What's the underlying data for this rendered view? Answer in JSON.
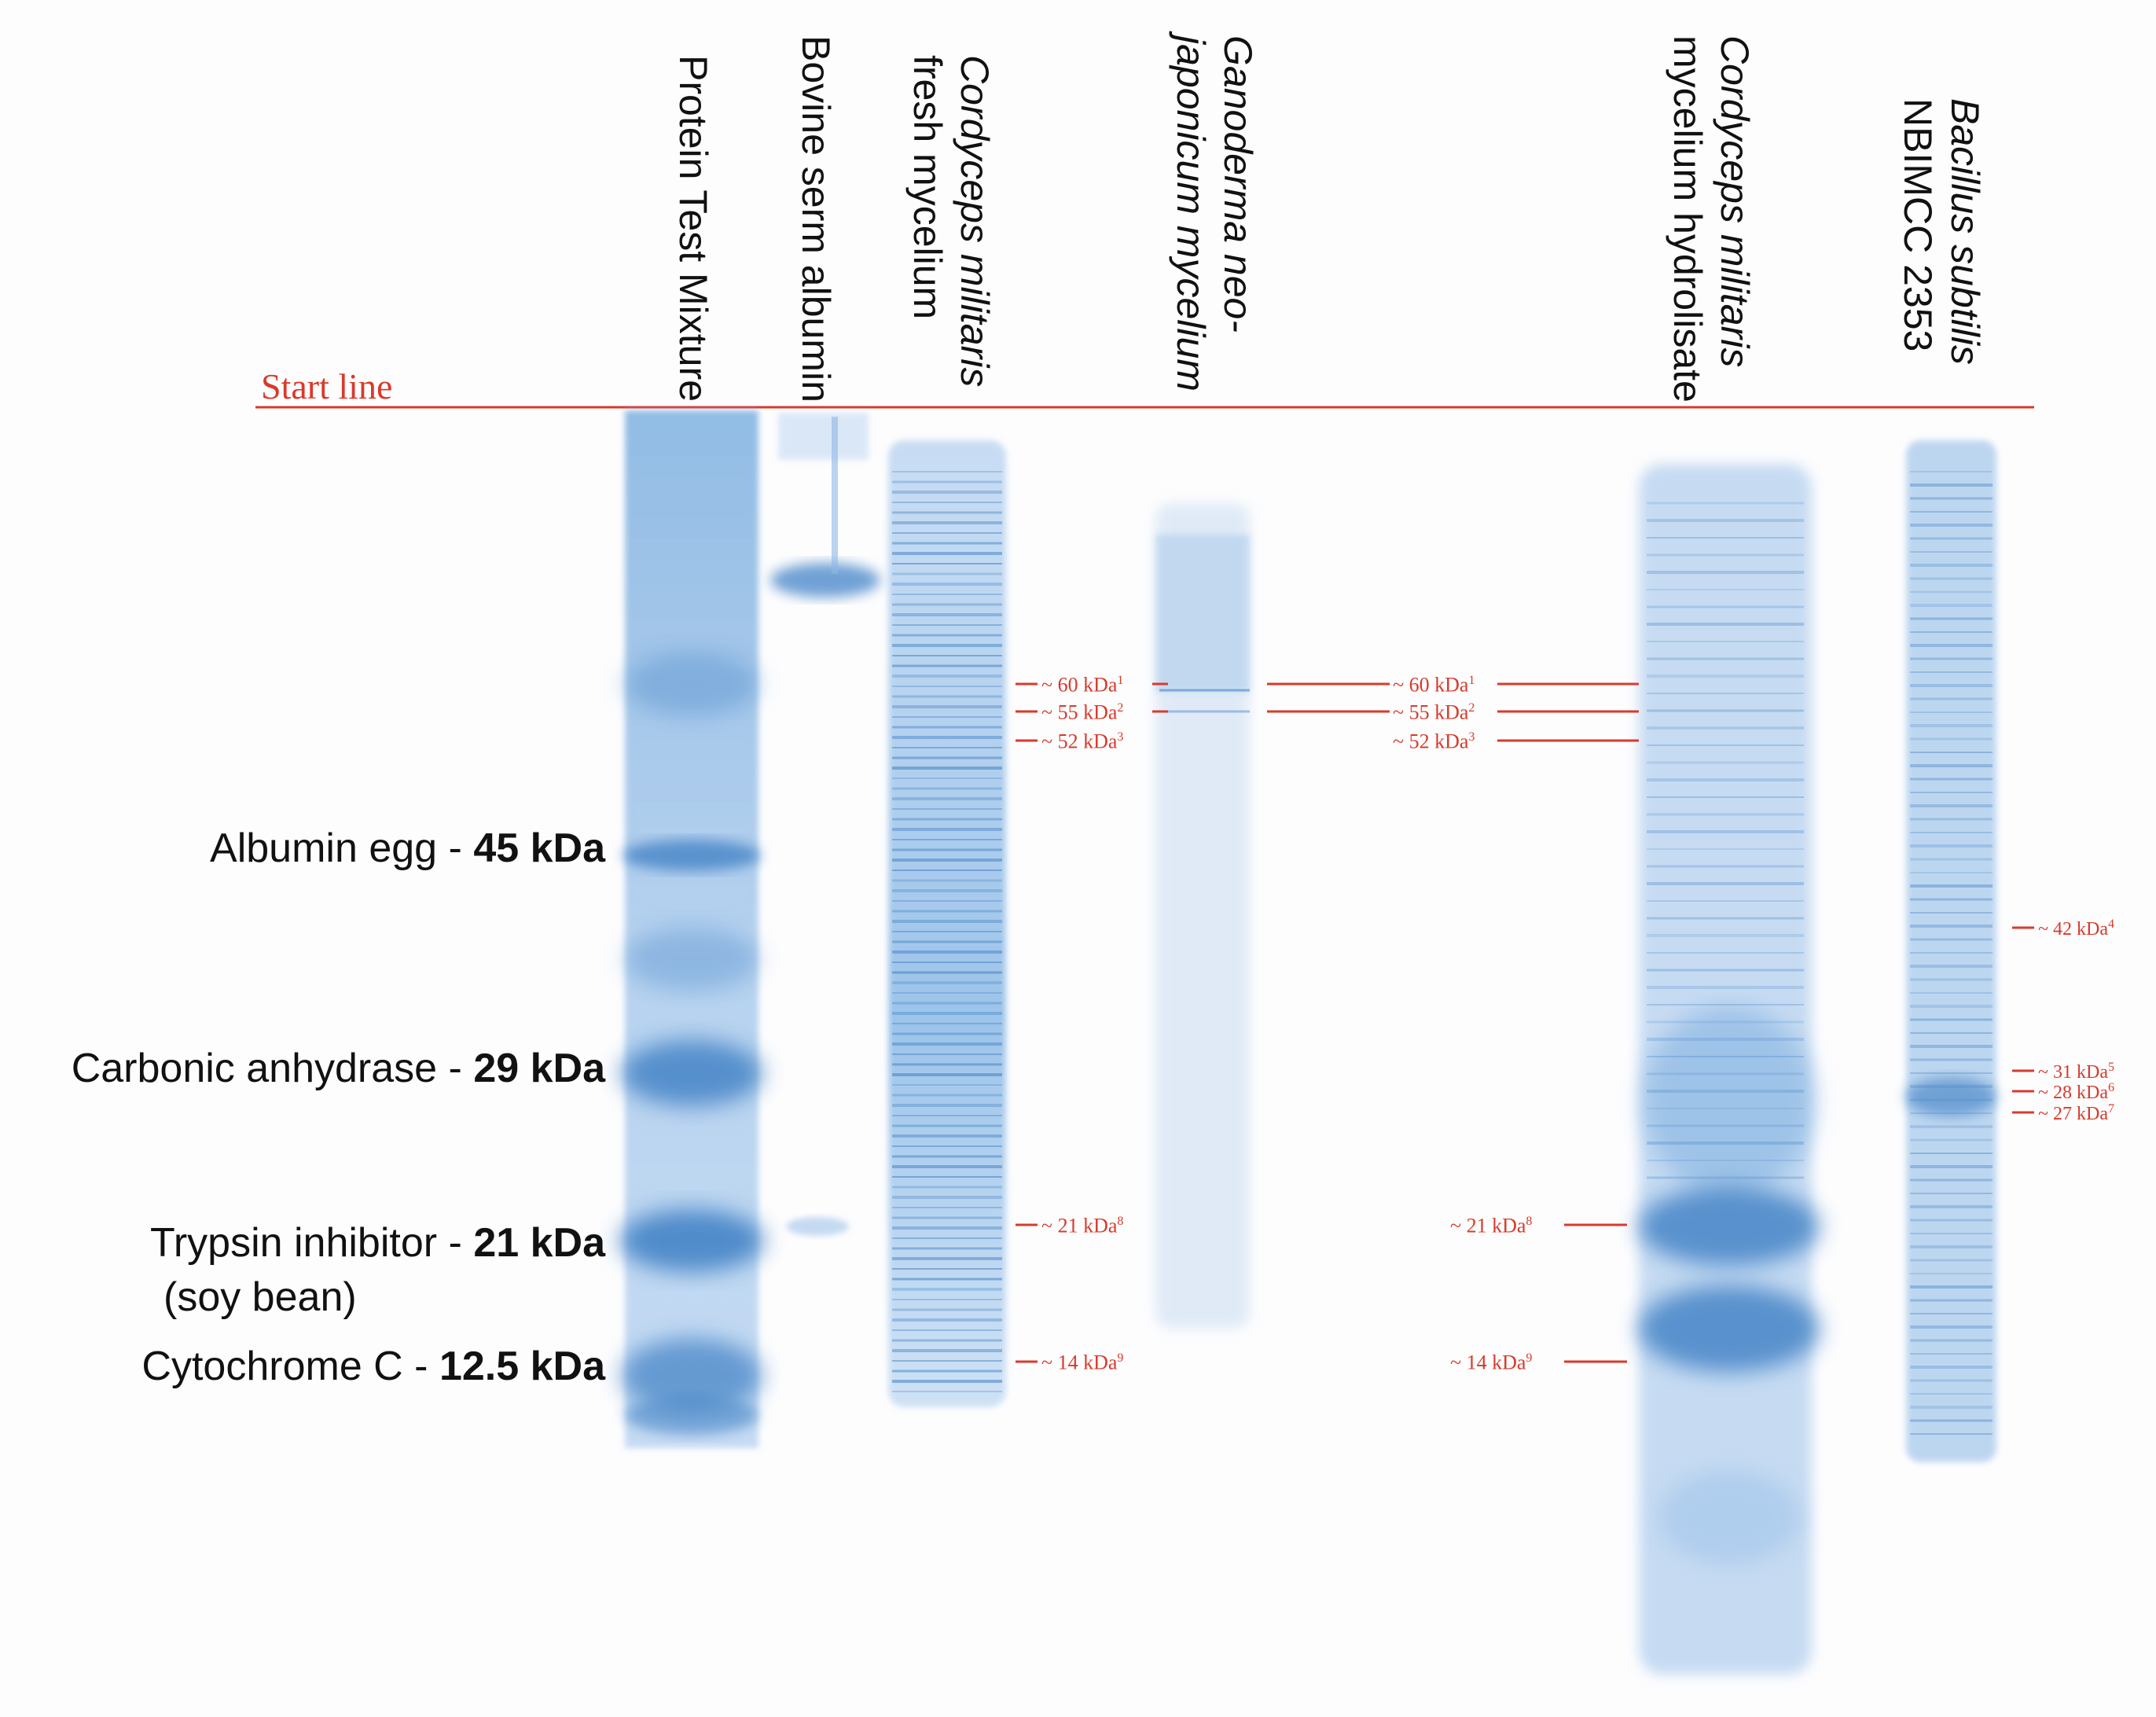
{
  "start_line": {
    "label": "Start line",
    "color": "#d93a2b"
  },
  "lanes": [
    {
      "name": "Protein Test Mixture",
      "lines": [
        "Protein Test Mixture"
      ]
    },
    {
      "name": "Bovine serm albumin",
      "lines": [
        "Bovine serm albumin"
      ]
    },
    {
      "name": "Cordyceps militaris fresh mycelium",
      "lines": [
        "Cordyceps militaris",
        "fresh mycelium"
      ]
    },
    {
      "name": "Ganoderma neo-japonicum mycelium",
      "lines": [
        "Ganoderma neo-",
        "japonicum mycelium"
      ]
    },
    {
      "name": "Cordyceps militaris mycelium hydrolisate",
      "lines": [
        "Cordyceps militaris",
        "mycelium hydrolisate"
      ]
    },
    {
      "name": "Bacillus subtilis NBIMCC 2353",
      "lines": [
        "Bacillus subtilis",
        "NBIMCC 2353"
      ]
    }
  ],
  "markers": [
    {
      "name": "Albumin egg - ",
      "size": "45 kDa",
      "extra": ""
    },
    {
      "name": "Carbonic anhydrase - ",
      "size": "29 kDa",
      "extra": ""
    },
    {
      "name": "Trypsin inhibitor - ",
      "size": "21 kDa",
      "extra": "(soy bean)"
    },
    {
      "name": "Cytochrome C - ",
      "size": "12.5 kDa",
      "extra": ""
    }
  ],
  "annotations": {
    "cordyceps_fresh": [
      {
        "text": "~ 60 kDa",
        "sup": "1"
      },
      {
        "text": "~ 55 kDa",
        "sup": "2"
      },
      {
        "text": "~ 52 kDa",
        "sup": "3"
      },
      {
        "text": "~ 21 kDa",
        "sup": "8"
      },
      {
        "text": "~ 14 kDa",
        "sup": "9"
      }
    ],
    "cordyceps_hydrolisate": [
      {
        "text": "~ 60 kDa",
        "sup": "1"
      },
      {
        "text": "~ 55 kDa",
        "sup": "2"
      },
      {
        "text": "~ 52 kDa",
        "sup": "3"
      },
      {
        "text": "~ 21 kDa",
        "sup": "8"
      },
      {
        "text": "~ 14 kDa",
        "sup": "9"
      }
    ],
    "bacillus": [
      {
        "text": "~ 42 kDa",
        "sup": "4"
      },
      {
        "text": "~ 31 kDa",
        "sup": "5"
      },
      {
        "text": "~ 28 kDa",
        "sup": "6"
      },
      {
        "text": "~ 27 kDa",
        "sup": "7"
      }
    ]
  },
  "colors": {
    "band": "#3d7fc4",
    "lane": "#a9c8ea",
    "annotation": "#d93a2b"
  }
}
